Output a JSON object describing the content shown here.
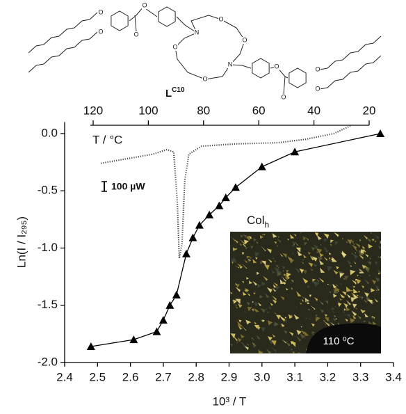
{
  "structure": {
    "label": "L",
    "label_sup": "C10",
    "atoms": [
      "O",
      "O",
      "O",
      "O",
      "N",
      "N",
      "O",
      "O",
      "O",
      "O",
      "O",
      "O",
      "O",
      "O"
    ]
  },
  "chart_data": {
    "type": "line",
    "xlabel": "10³ / T",
    "ylabel": "Ln(I / I₂₉₅)",
    "xlim": [
      2.4,
      3.4
    ],
    "xticks": [
      2.4,
      2.5,
      2.6,
      2.7,
      2.8,
      2.9,
      {
        "value": 3,
        "label": "3.0"
      },
      3.1,
      3.2,
      3.3,
      3.4
    ],
    "ylim": [
      -2.0,
      0.1
    ],
    "yticks": [
      {
        "value": 0,
        "label": "0.0"
      },
      -0.5,
      {
        "value": -1,
        "label": "-1.0"
      },
      -1.5,
      {
        "value": -2,
        "label": "-2.0"
      }
    ],
    "x2label": "T / °C",
    "x2lim": [
      121,
      20
    ],
    "x2ticks": [
      120,
      100,
      80,
      60,
      40,
      20
    ],
    "series": [
      {
        "color": "#000000",
        "marker": "triangle",
        "x": [
          2.48,
          2.61,
          2.68,
          2.7,
          2.72,
          2.74,
          2.77,
          2.79,
          2.81,
          2.84,
          2.87,
          2.89,
          2.92,
          3.0,
          3.1,
          3.36
        ],
        "values": [
          -1.86,
          -1.8,
          -1.73,
          -1.63,
          -1.5,
          -1.41,
          -1.05,
          -0.91,
          -0.8,
          -0.71,
          -0.63,
          -0.56,
          -0.47,
          -0.29,
          -0.16,
          0.0
        ]
      }
    ],
    "dsc": {
      "axis": "x2",
      "color": "#444444",
      "x": [
        117.2,
        98.3,
        93.3,
        90.8,
        89.5,
        88.8,
        87.8,
        86.8,
        85.3,
        80.7,
        68.1,
        53,
        42.9,
        32.8,
        26.5
      ],
      "values": [
        -0.26,
        -0.18,
        -0.14,
        -0.16,
        -0.6,
        -1.09,
        -0.96,
        -0.41,
        -0.18,
        -0.11,
        -0.09,
        -0.08,
        -0.05,
        0.0,
        0.07
      ]
    },
    "scale_bar": "100 µW",
    "inset_title": "Col",
    "inset_title_sub": "h",
    "inset_label": "110 ⁰C"
  }
}
